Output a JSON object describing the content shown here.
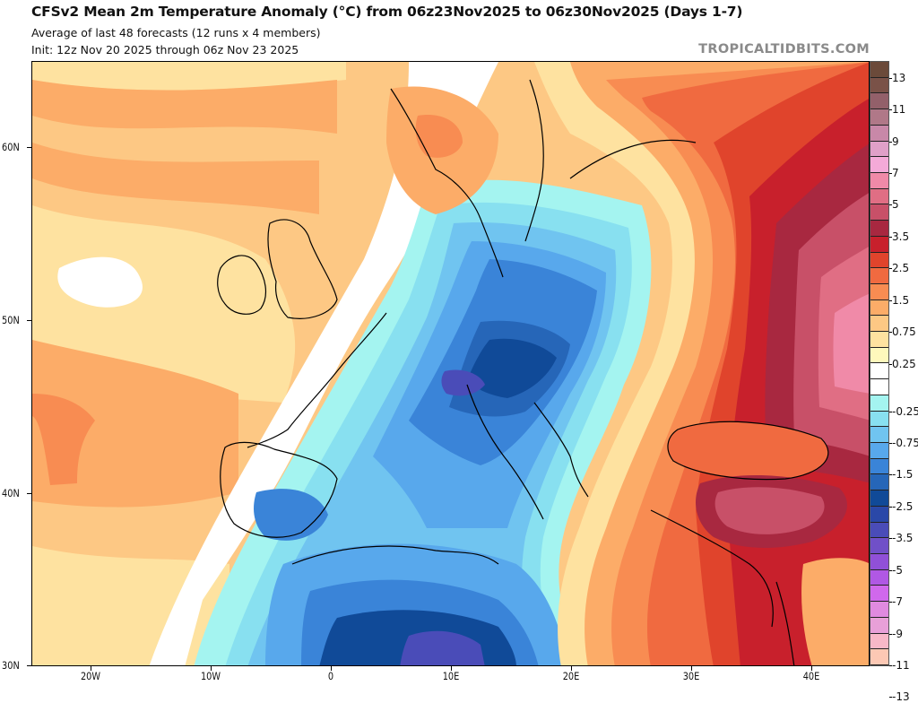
{
  "header": {
    "title": "CFSv2 Mean 2m Temperature Anomaly (°C) from 06z23Nov2025 to 06z30Nov2025 (Days 1-7)",
    "subtitle": "Average of last 48 forecasts (12 runs x 4 members)",
    "init": "Init: 12z Nov 20 2025 through 06z Nov 23 2025",
    "watermark": "TROPICALTIDBITS.COM"
  },
  "map": {
    "variable": "2m Temperature Anomaly",
    "units": "°C",
    "region": "Europe / North Africa / Middle East",
    "lat_range": [
      30,
      65
    ],
    "lon_range": [
      -25,
      45
    ],
    "lat_labels": [
      "60N",
      "50N",
      "40N",
      "30N"
    ],
    "lat_values": [
      60,
      50,
      40,
      30
    ],
    "lon_labels": [
      "20W",
      "10W",
      "0",
      "10E",
      "20E",
      "30E",
      "40E"
    ],
    "lon_values": [
      -20,
      -10,
      0,
      10,
      20,
      30,
      40
    ],
    "features": [
      {
        "name": "cold-anomaly-central-europe",
        "label": "Cold anomaly over Central Europe, Alps and Balkans"
      },
      {
        "name": "cold-anomaly-north-africa",
        "label": "Cold anomaly over Algeria and Tunisia"
      },
      {
        "name": "warm-anomaly-eastern-europe",
        "label": "Warm anomaly over Ukraine, Russia, Turkey"
      },
      {
        "name": "warm-anomaly-atlantic",
        "label": "Mild anomaly over the North Atlantic and British Isles"
      }
    ]
  },
  "colorbar": {
    "labels": [
      "13",
      "11",
      "9",
      "7",
      "5",
      "3.5",
      "2.5",
      "1.5",
      "0.75",
      "0.25",
      "-0.25",
      "-0.75",
      "-1.5",
      "-2.5",
      "-3.5",
      "-5",
      "-7",
      "-9",
      "-11",
      "-13"
    ],
    "colors": [
      "#6b4a3a",
      "#7a5248",
      "#93606a",
      "#b07888",
      "#c888a8",
      "#e0a0c8",
      "#f4aad8",
      "#f08aa8",
      "#e06e84",
      "#c85068",
      "#a82840",
      "#c8202c",
      "#e0442c",
      "#f06a40",
      "#f88c52",
      "#fcac68",
      "#fdc884",
      "#fee2a0",
      "#fef8bc",
      "#ffffff",
      "#ffffff",
      "#a4f4f0",
      "#88e0f0",
      "#70c4f0",
      "#58a8ec",
      "#3a84d8",
      "#2666b8",
      "#104a98",
      "#2a48a8",
      "#4a4cb8",
      "#7050c8",
      "#9050d8",
      "#b058e4",
      "#d068ec",
      "#e08ae0",
      "#e8a0d8",
      "#f8b8c8",
      "#fcc8b4"
    ]
  }
}
